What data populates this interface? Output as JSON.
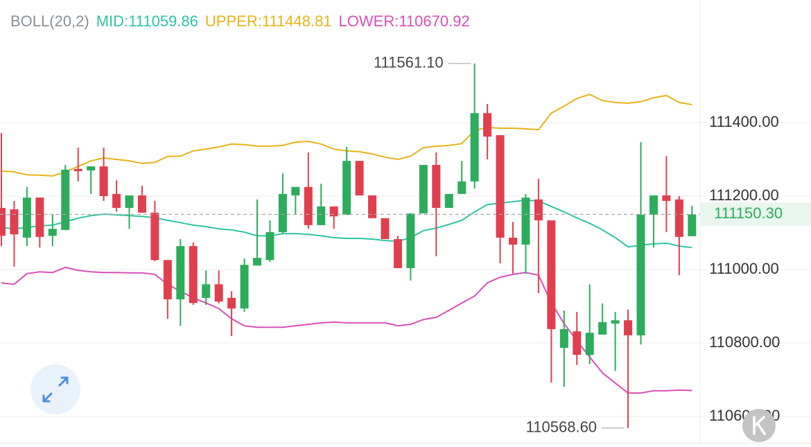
{
  "chart_data": {
    "type": "candlestick",
    "indicator": "BOLL(20,2)",
    "indicator_color": "#8a8f98",
    "up_color": "#2dac5c",
    "down_color": "#e0404e",
    "ylim": [
      110517,
      111734
    ],
    "yticks": [
      {
        "value": 110600,
        "label": "110600.00"
      },
      {
        "value": 110800,
        "label": "110800.00"
      },
      {
        "value": 111000,
        "label": "111000.00"
      },
      {
        "value": 111200,
        "label": "111200.00"
      },
      {
        "value": 111400,
        "label": "111400.00"
      }
    ],
    "grid": true,
    "candles": {
      "open": [
        111168,
        111164,
        111087,
        111196,
        111092,
        111108,
        111274,
        111270,
        111281,
        111206,
        111168,
        111202,
        111155,
        111026,
        110919,
        111064,
        110923,
        110960,
        110923,
        110894,
        111011,
        111026,
        111102,
        111202,
        111225,
        111121,
        111172,
        111149,
        111296,
        111202,
        111140,
        111083,
        111004,
        111153,
        111285,
        111168,
        111206,
        111240,
        111426,
        111366,
        111087,
        111068,
        111191,
        111134,
        110787,
        110832,
        110768,
        110823,
        110853,
        110862,
        110821,
        111149,
        111202,
        111191,
        111091
      ],
      "high": [
        111372,
        111187,
        111225,
        111196,
        111149,
        111285,
        111332,
        111281,
        111332,
        111243,
        111202,
        111228,
        111187,
        111026,
        111083,
        111074,
        110998,
        110998,
        110941,
        111030,
        111191,
        111134,
        111262,
        111225,
        111319,
        111234,
        111172,
        111334,
        111296,
        111202,
        111140,
        111092,
        111153,
        111285,
        111319,
        111206,
        111296,
        111561.1,
        111451,
        111366,
        111130,
        111206,
        111247,
        111134,
        110889,
        110885,
        110960,
        110908,
        110885,
        110891,
        111347,
        111202,
        111309,
        111200,
        111174
      ],
      "low": [
        111064,
        111008,
        111064,
        111060,
        111064,
        111108,
        111240,
        111206,
        111187,
        111158,
        111111,
        111155,
        111023,
        110866,
        110847,
        110904,
        110904,
        110908,
        110819,
        110885,
        111011,
        111021,
        111096,
        111149,
        111111,
        111121,
        111111,
        111149,
        111202,
        111140,
        111083,
        111004,
        110970,
        111153,
        111036,
        111168,
        111206,
        111221,
        111300,
        111017,
        110989,
        110989,
        110936,
        110692,
        110681,
        110740,
        110743,
        110823,
        110724,
        110568.6,
        110796,
        111060,
        111102,
        110985,
        111091
      ],
      "close": [
        111092,
        111096,
        111196,
        111089,
        111111,
        111272,
        111268,
        111281,
        111200,
        111168,
        111202,
        111155,
        111026,
        110919,
        111064,
        110909,
        110960,
        110913,
        110894,
        111013,
        111032,
        111102,
        111206,
        111225,
        111121,
        111172,
        111145,
        111296,
        111202,
        111140,
        111083,
        111004,
        111153,
        111285,
        111168,
        111206,
        111240,
        111426,
        111362,
        111087,
        111068,
        111196,
        111134,
        110838,
        110838,
        110768,
        110828,
        110857,
        110862,
        110821,
        111149,
        111202,
        111187,
        111089,
        111150.3
      ]
    },
    "series": [
      {
        "name": "MID:111059.86",
        "color": "#2ec4a6",
        "values": [
          111115,
          111111,
          111115,
          111119,
          111121,
          111130,
          111140,
          111147,
          111151,
          111149,
          111147,
          111145,
          111141,
          111134,
          111128,
          111121,
          111117,
          111111,
          111108,
          111102,
          111092,
          111092,
          111098,
          111098,
          111096,
          111092,
          111087,
          111085,
          111085,
          111083,
          111079,
          111077,
          111087,
          111106,
          111113,
          111123,
          111134,
          111157,
          111177,
          111181,
          111185,
          111189,
          111187,
          111172,
          111157,
          111141,
          111126,
          111108,
          111087,
          111062,
          111066,
          111070,
          111072,
          111064,
          111060
        ]
      },
      {
        "name": "UPPER:111448.81",
        "color": "#e8b21a",
        "values": [
          111268,
          111266,
          111258,
          111257,
          111255,
          111266,
          111281,
          111296,
          111304,
          111300,
          111296,
          111289,
          111292,
          111308,
          111309,
          111323,
          111328,
          111334,
          111342,
          111340,
          111336,
          111336,
          111338,
          111347,
          111349,
          111342,
          111328,
          111323,
          111321,
          111315,
          111306,
          111300,
          111309,
          111332,
          111336,
          111338,
          111343,
          111379,
          111387,
          111385,
          111385,
          111383,
          111381,
          111426,
          111445,
          111466,
          111477,
          111460,
          111455,
          111453,
          111457,
          111468,
          111474,
          111455,
          111449
        ]
      },
      {
        "name": "LOWER:110670.92",
        "color": "#d84fb8",
        "values": [
          110964,
          110960,
          110989,
          110994,
          110992,
          111006,
          110998,
          110994,
          110992,
          110992,
          110991,
          110991,
          110987,
          110960,
          110941,
          110923,
          110909,
          110894,
          110866,
          110847,
          110843,
          110843,
          110843,
          110847,
          110851,
          110855,
          110857,
          110855,
          110855,
          110855,
          110855,
          110847,
          110851,
          110864,
          110870,
          110889,
          110909,
          110928,
          110964,
          110979,
          110987,
          110992,
          110985,
          110909,
          110853,
          110806,
          110762,
          110719,
          110691,
          110664,
          110664,
          110670,
          110670,
          110672,
          110671
        ]
      }
    ],
    "high_annotation": {
      "value": 111561.1,
      "label": "111561.10"
    },
    "low_annotation": {
      "value": 110568.6,
      "label": "110568.60"
    },
    "last_price": {
      "value": 111150.3,
      "label": "111150.30"
    }
  }
}
